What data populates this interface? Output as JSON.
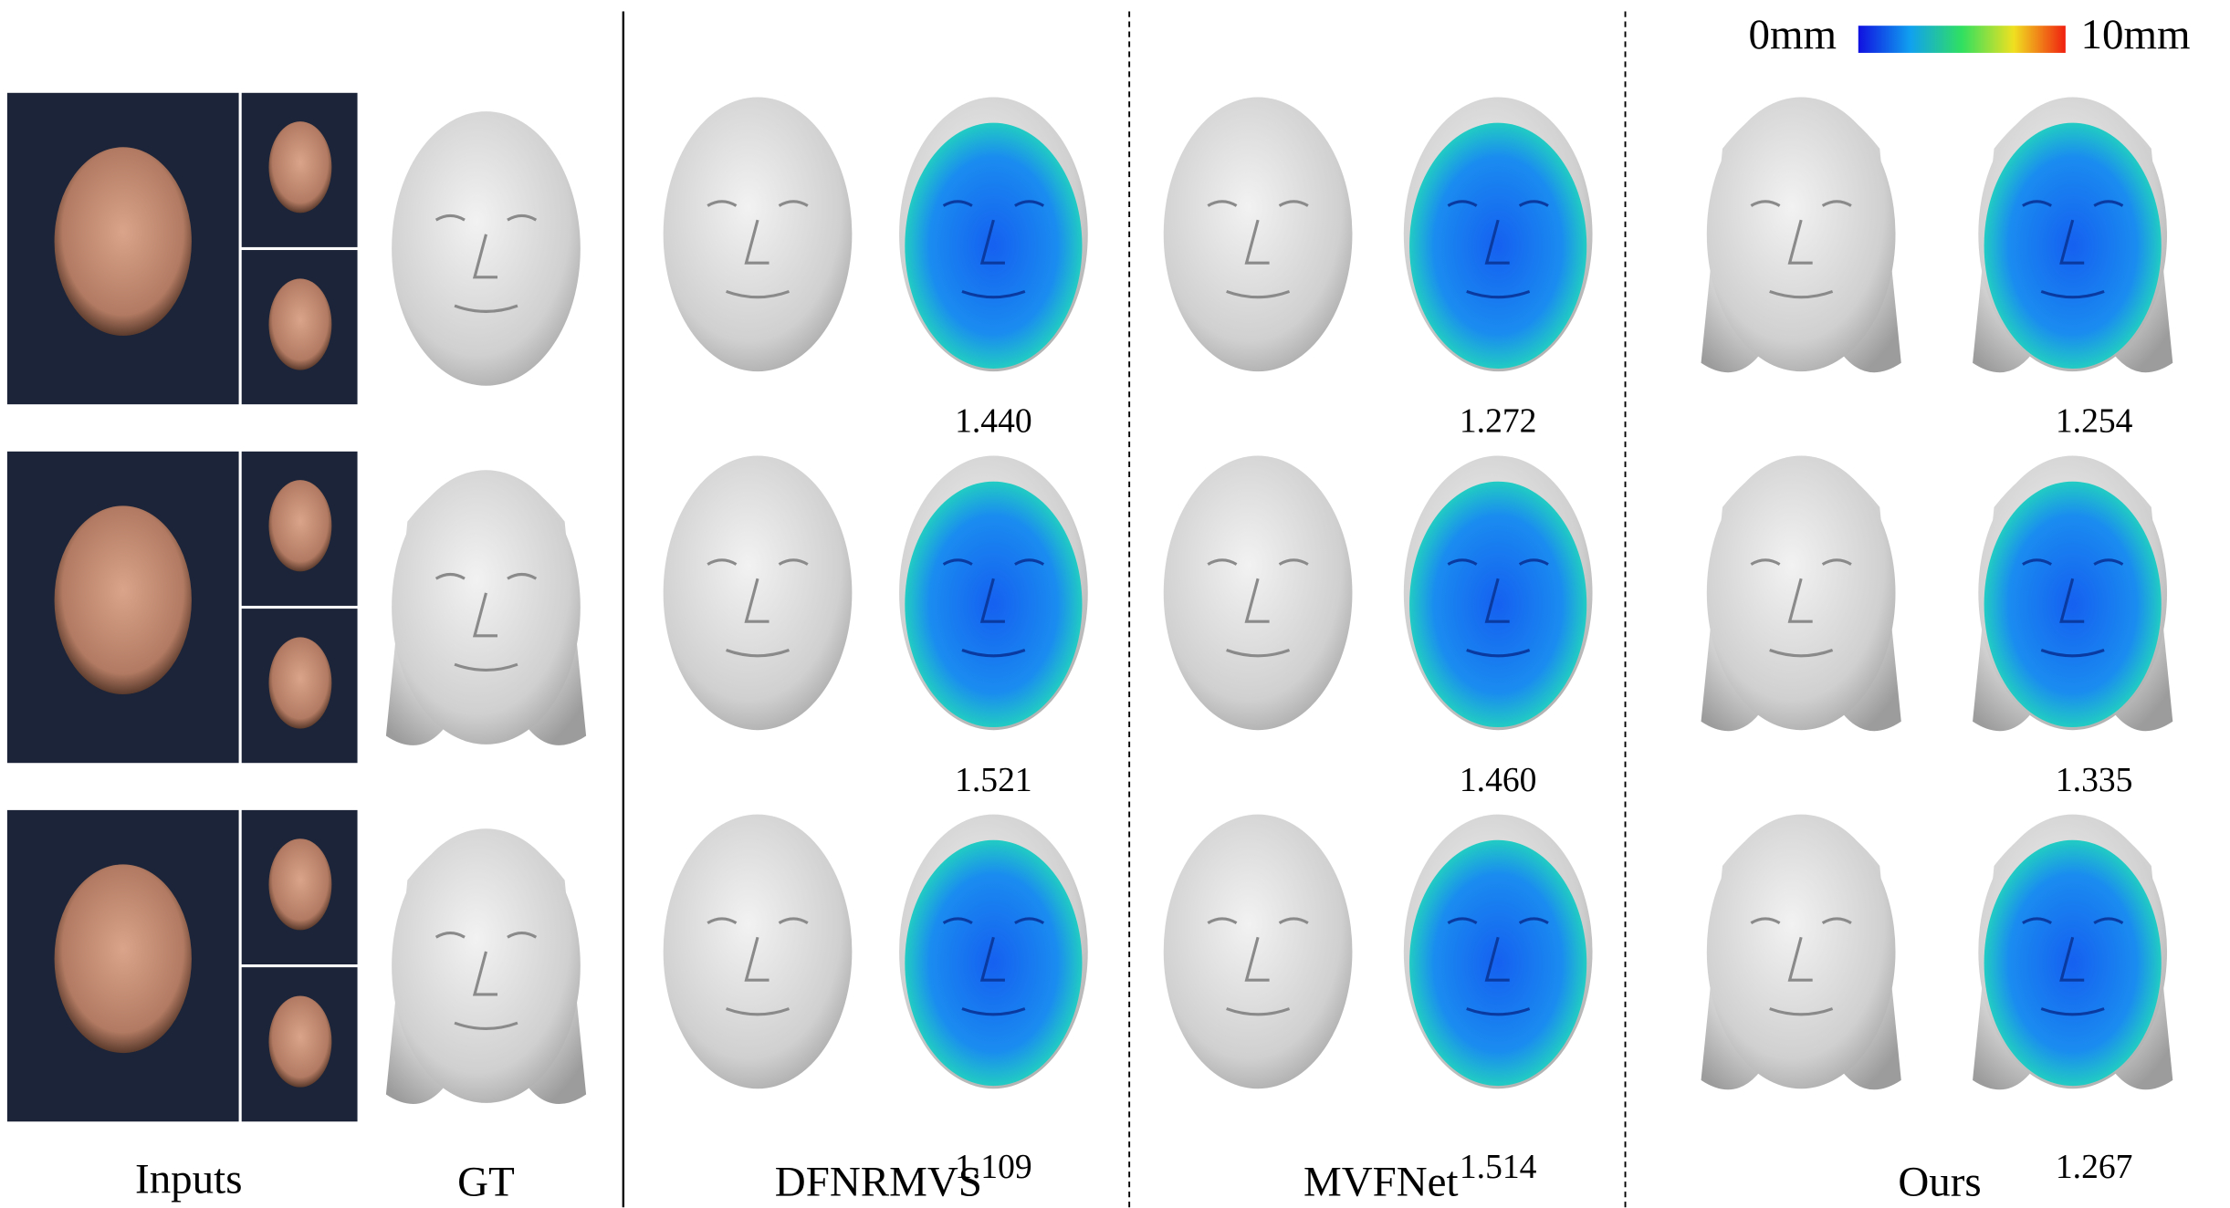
{
  "labels": {
    "inputs": "Inputs",
    "gt": "GT"
  },
  "colorbar": {
    "min_label": "0mm",
    "max_label": "10mm"
  },
  "methods": [
    {
      "name": "DFNRMVS",
      "errors": [
        "1.440",
        "1.521",
        "1.109"
      ]
    },
    {
      "name": "MVFNet",
      "errors": [
        "1.272",
        "1.460",
        "1.514"
      ]
    },
    {
      "name": "Ours",
      "errors": [
        "1.254",
        "1.335",
        "1.267"
      ]
    }
  ]
}
